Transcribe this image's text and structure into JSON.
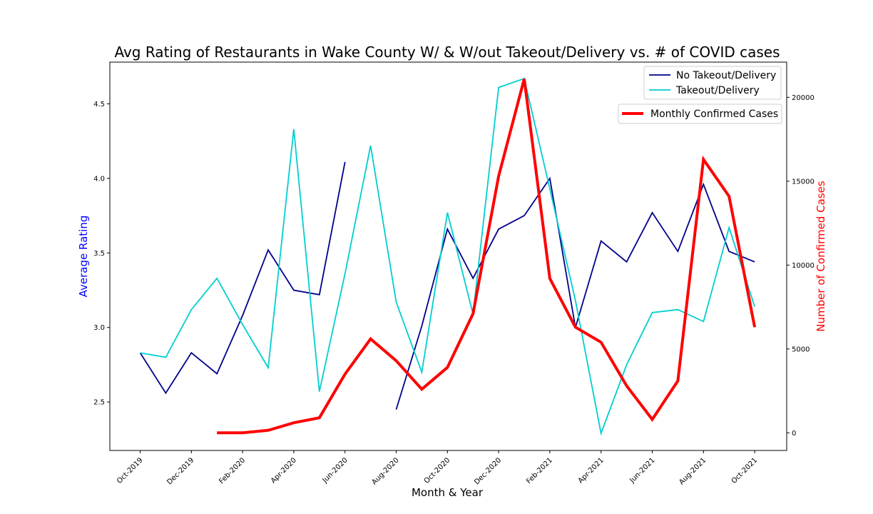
{
  "chart_data": {
    "type": "line",
    "title": "Avg Rating of Restaurants in Wake County W/ & W/out Takeout/Delivery vs. # of COVID cases",
    "xlabel": "Month & Year",
    "ylabel": "Average Rating",
    "y2label": "Number of Confirmed Cases",
    "ylabel_color": "#0000ff",
    "y2label_color": "#ff0000",
    "categories": [
      "Oct-2019",
      "Nov-2019",
      "Dec-2019",
      "Jan-2020",
      "Feb-2020",
      "Mar-2020",
      "Apr-2020",
      "May-2020",
      "Jun-2020",
      "Jul-2020",
      "Aug-2020",
      "Sep-2020",
      "Oct-2020",
      "Nov-2020",
      "Dec-2020",
      "Jan-2021",
      "Feb-2021",
      "Mar-2021",
      "Apr-2021",
      "May-2021",
      "Jun-2021",
      "Jul-2021",
      "Aug-2021",
      "Sep-2021",
      "Oct-2021"
    ],
    "x_tick_labels": [
      "Oct-2019",
      "",
      "Dec-2019",
      "",
      "Feb-2020",
      "",
      "Apr-2020",
      "",
      "Jun-2020",
      "",
      "Aug-2020",
      "",
      "Oct-2020",
      "",
      "Dec-2020",
      "",
      "Feb-2021",
      "",
      "Apr-2021",
      "",
      "Jun-2021",
      "",
      "Aug-2021",
      "",
      "Oct-2021"
    ],
    "ylim": [
      2.175,
      4.78
    ],
    "y_ticks": [
      2.5,
      3.0,
      3.5,
      4.0,
      4.5
    ],
    "y_tick_labels": [
      "2.5",
      "3.0",
      "3.5",
      "4.0",
      "4.5"
    ],
    "y2lim": [
      -1050,
      22100
    ],
    "y2_ticks": [
      0,
      5000,
      10000,
      15000,
      20000
    ],
    "y2_tick_labels": [
      "0",
      "5000",
      "10000",
      "15000",
      "20000"
    ],
    "series": [
      {
        "name": "No Takeout/Delivery",
        "axis": "left",
        "color": "#00008b",
        "values": [
          2.83,
          2.56,
          2.83,
          2.69,
          3.08,
          3.52,
          3.25,
          3.22,
          4.11,
          null,
          2.45,
          3.01,
          3.66,
          3.33,
          3.66,
          3.75,
          4.0,
          3.0,
          3.58,
          3.44,
          3.77,
          3.51,
          3.96,
          3.51,
          3.44
        ]
      },
      {
        "name": "Takeout/Delivery",
        "axis": "left",
        "color": "#00ced1",
        "values": [
          2.83,
          2.8,
          3.12,
          3.33,
          3.02,
          2.73,
          4.33,
          2.57,
          3.36,
          4.22,
          3.17,
          2.7,
          3.77,
          3.09,
          4.61,
          4.67,
          3.93,
          3.18,
          2.29,
          2.75,
          3.1,
          3.12,
          3.04,
          3.67,
          3.14
        ]
      },
      {
        "name": "Monthly Confirmed Cases",
        "axis": "right",
        "color": "#ff0000",
        "values": [
          null,
          null,
          null,
          0,
          0,
          150,
          600,
          900,
          3500,
          5600,
          4300,
          2600,
          3900,
          7100,
          15300,
          21100,
          9200,
          6300,
          5400,
          2800,
          800,
          3100,
          16300,
          14100,
          6300
        ]
      }
    ],
    "legend": {
      "placement": "top-right",
      "items": [
        "No Takeout/Delivery",
        "Takeout/Delivery"
      ],
      "secondary_items": [
        "Monthly Confirmed Cases"
      ]
    },
    "grid": false
  }
}
